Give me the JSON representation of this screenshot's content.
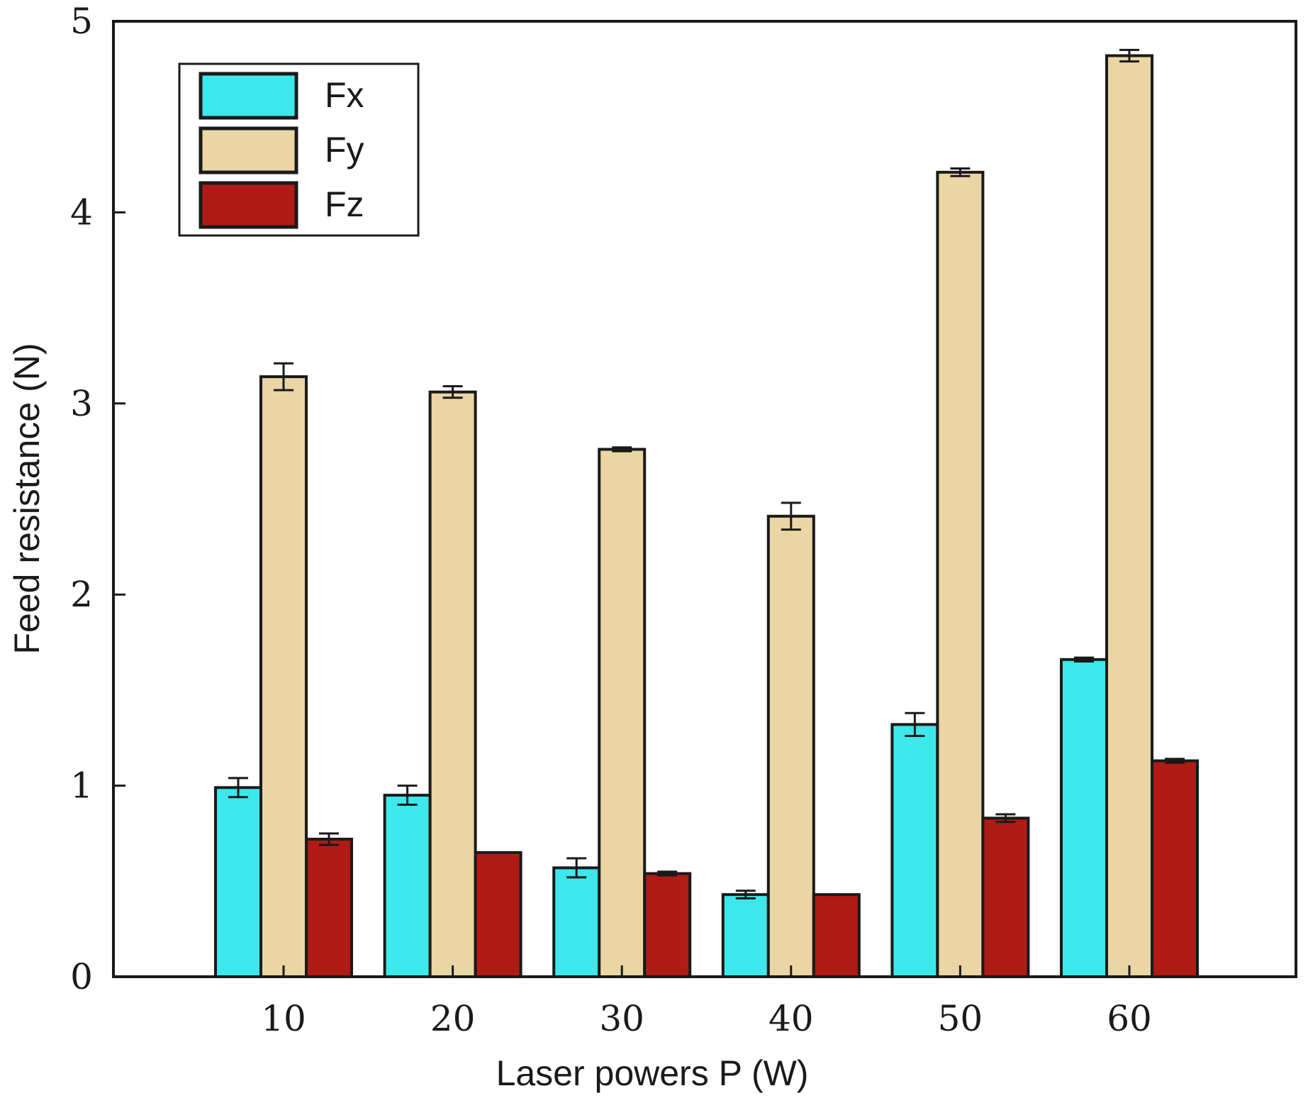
{
  "chart_data": {
    "type": "bar",
    "title": "",
    "xlabel": "Laser powers P (W)",
    "ylabel": "Feed resistance (N)",
    "ylim": [
      0,
      5
    ],
    "yticks": [
      "0",
      "1",
      "2",
      "3",
      "4",
      "5"
    ],
    "categories": [
      "10",
      "20",
      "30",
      "40",
      "50",
      "60"
    ],
    "series": [
      {
        "name": "Fx",
        "color": "#3de8ec",
        "values": [
          0.99,
          0.95,
          0.57,
          0.43,
          1.32,
          1.66
        ],
        "errors": [
          0.05,
          0.05,
          0.05,
          0.02,
          0.06,
          0.01
        ]
      },
      {
        "name": "Fy",
        "color": "#ecd5a4",
        "values": [
          3.14,
          3.06,
          2.76,
          2.41,
          4.21,
          4.82
        ],
        "errors": [
          0.07,
          0.03,
          0.01,
          0.07,
          0.02,
          0.03
        ]
      },
      {
        "name": "Fz",
        "color": "#b01b16",
        "values": [
          0.72,
          0.65,
          0.54,
          0.43,
          0.83,
          1.13
        ],
        "errors": [
          0.03,
          0.0,
          0.01,
          0.0,
          0.02,
          0.01
        ]
      }
    ],
    "legend": {
      "position": "top-left",
      "items": [
        "Fx",
        "Fy",
        "Fz"
      ]
    },
    "grid": false
  }
}
